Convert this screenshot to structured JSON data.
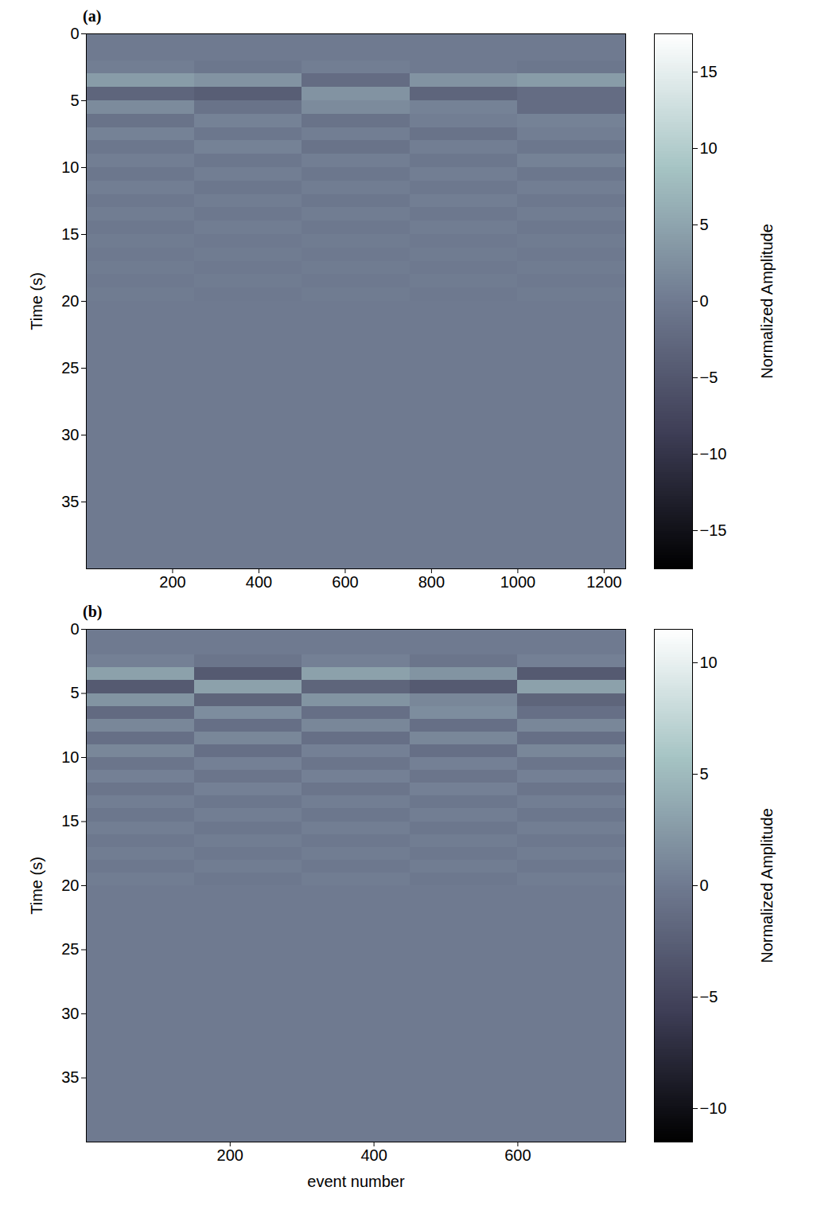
{
  "chart_data": [
    {
      "type": "heatmap",
      "panel_label": "(a)",
      "ylabel": "Time (s)",
      "xlabel": null,
      "x": [
        0,
        250,
        500,
        750,
        1000,
        1250
      ],
      "y": [
        0,
        1,
        2,
        3,
        4,
        5,
        6,
        7,
        8,
        9,
        10,
        11,
        12,
        13,
        14,
        15,
        16,
        17,
        18,
        19,
        20,
        21,
        22,
        23,
        24,
        25,
        26,
        27,
        28,
        29,
        30,
        31,
        32,
        33,
        34,
        35,
        36,
        37,
        38,
        39,
        40
      ],
      "values": [
        [
          0,
          0,
          0,
          0,
          0
        ],
        [
          0,
          0,
          0,
          0,
          0
        ],
        [
          0.5,
          -0.5,
          0.5,
          0,
          -0.5
        ],
        [
          4,
          3,
          -2,
          3,
          4
        ],
        [
          -3,
          -4,
          3,
          -3,
          -2
        ],
        [
          2,
          -1,
          2,
          1,
          -2
        ],
        [
          -1,
          1,
          -1,
          0.5,
          1
        ],
        [
          1,
          -0.5,
          0.5,
          -1,
          0.5
        ],
        [
          -0.5,
          1,
          -1,
          0.5,
          -0.5
        ],
        [
          0.5,
          -0.5,
          0.5,
          -0.5,
          1
        ],
        [
          -0.5,
          0.5,
          -0.5,
          0.5,
          -0.5
        ],
        [
          0.5,
          -0.5,
          0.3,
          -0.3,
          0.5
        ],
        [
          -0.3,
          0.3,
          -0.5,
          0.5,
          -0.3
        ],
        [
          0.3,
          -0.3,
          0.3,
          -0.3,
          0.3
        ],
        [
          -0.3,
          0.3,
          -0.3,
          0.3,
          -0.3
        ],
        [
          0.2,
          -0.2,
          0.2,
          -0.2,
          0.2
        ],
        [
          -0.2,
          0.2,
          -0.2,
          0.2,
          -0.2
        ],
        [
          0.2,
          -0.2,
          0.2,
          -0.2,
          0.2
        ],
        [
          -0.2,
          0.2,
          -0.2,
          0.2,
          -0.2
        ],
        [
          0.2,
          -0.2,
          0.2,
          -0.2,
          0.2
        ],
        [
          0,
          0,
          0,
          0,
          0
        ],
        [
          0,
          0,
          0,
          0,
          0
        ],
        [
          0,
          0,
          0,
          0,
          0
        ],
        [
          0,
          0,
          0,
          0,
          0
        ],
        [
          0,
          0,
          0,
          0,
          0
        ],
        [
          0,
          0,
          0,
          0,
          0
        ],
        [
          0,
          0,
          0,
          0,
          0
        ],
        [
          0,
          0,
          0,
          0,
          0
        ],
        [
          0,
          0,
          0,
          0,
          0
        ],
        [
          0,
          0,
          0,
          0,
          0
        ],
        [
          0,
          0,
          0,
          0,
          0
        ],
        [
          0,
          0,
          0,
          0,
          0
        ],
        [
          0,
          0,
          0,
          0,
          0
        ],
        [
          0,
          0,
          0,
          0,
          0
        ],
        [
          0,
          0,
          0,
          0,
          0
        ],
        [
          0,
          0,
          0,
          0,
          0
        ],
        [
          0,
          0,
          0,
          0,
          0
        ],
        [
          0,
          0,
          0,
          0,
          0
        ],
        [
          0,
          0,
          0,
          0,
          0
        ],
        [
          0,
          0,
          0,
          0,
          0
        ]
      ],
      "xlim": [
        0,
        1250
      ],
      "xticks": [
        200,
        400,
        600,
        800,
        1000,
        1200
      ],
      "ylim": [
        0,
        40
      ],
      "yticks": [
        0,
        5,
        10,
        15,
        20,
        25,
        30,
        35
      ],
      "color_range": [
        -17.5,
        17.5
      ],
      "color_ticks": [
        -15,
        -10,
        -5,
        0,
        5,
        10,
        15
      ],
      "color_label": "Normalized Amplitude"
    },
    {
      "type": "heatmap",
      "panel_label": "(b)",
      "ylabel": "Time (s)",
      "xlabel": "event number",
      "x": [
        0,
        150,
        300,
        450,
        600,
        750
      ],
      "y": [
        0,
        1,
        2,
        3,
        4,
        5,
        6,
        7,
        8,
        9,
        10,
        11,
        12,
        13,
        14,
        15,
        16,
        17,
        18,
        19,
        20,
        21,
        22,
        23,
        24,
        25,
        26,
        27,
        28,
        29,
        30,
        31,
        32,
        33,
        34,
        35,
        36,
        37,
        38,
        39,
        40
      ],
      "values": [
        [
          0,
          0,
          0,
          0,
          0
        ],
        [
          0,
          0,
          0,
          0,
          0
        ],
        [
          0.5,
          -0.5,
          0.5,
          -0.5,
          0.5
        ],
        [
          3,
          -3,
          3,
          2,
          -3
        ],
        [
          -3,
          3,
          -2,
          -3,
          3
        ],
        [
          2,
          -2,
          2,
          1,
          -2
        ],
        [
          -1.5,
          1.5,
          -1,
          1.5,
          -1
        ],
        [
          1,
          -1,
          1,
          -1,
          1
        ],
        [
          -1,
          1,
          -1,
          1,
          -1
        ],
        [
          1,
          -1,
          0.5,
          -1,
          1
        ],
        [
          -0.5,
          0.5,
          -0.5,
          0.5,
          -0.5
        ],
        [
          0.5,
          -0.5,
          0.5,
          -0.5,
          0.5
        ],
        [
          -0.5,
          0.5,
          -0.5,
          0.5,
          -0.5
        ],
        [
          0.3,
          -0.3,
          0.3,
          -0.3,
          0.3
        ],
        [
          -0.3,
          0.3,
          -0.3,
          0.3,
          -0.3
        ],
        [
          0.3,
          -0.3,
          0.3,
          -0.3,
          0.3
        ],
        [
          -0.2,
          0.2,
          -0.2,
          0.2,
          -0.2
        ],
        [
          0.2,
          -0.2,
          0.2,
          -0.2,
          0.2
        ],
        [
          -0.2,
          0.2,
          -0.2,
          0.2,
          -0.2
        ],
        [
          0.2,
          -0.2,
          0.2,
          -0.2,
          0.2
        ],
        [
          0,
          0,
          0,
          0,
          0
        ],
        [
          0,
          0,
          0,
          0,
          0
        ],
        [
          0,
          0,
          0,
          0,
          0
        ],
        [
          0,
          0,
          0,
          0,
          0
        ],
        [
          0,
          0,
          0,
          0,
          0
        ],
        [
          0,
          0,
          0,
          0,
          0
        ],
        [
          0,
          0,
          0,
          0,
          0
        ],
        [
          0,
          0,
          0,
          0,
          0
        ],
        [
          0,
          0,
          0,
          0,
          0
        ],
        [
          0,
          0,
          0,
          0,
          0
        ],
        [
          0,
          0,
          0,
          0,
          0
        ],
        [
          0,
          0,
          0,
          0,
          0
        ],
        [
          0,
          0,
          0,
          0,
          0
        ],
        [
          0,
          0,
          0,
          0,
          0
        ],
        [
          0,
          0,
          0,
          0,
          0
        ],
        [
          0,
          0,
          0,
          0,
          0
        ],
        [
          0,
          0,
          0,
          0,
          0
        ],
        [
          0,
          0,
          0,
          0,
          0
        ],
        [
          0,
          0,
          0,
          0,
          0
        ],
        [
          0,
          0,
          0,
          0,
          0
        ]
      ],
      "xlim": [
        0,
        750
      ],
      "xticks": [
        200,
        400,
        600
      ],
      "ylim": [
        0,
        40
      ],
      "yticks": [
        0,
        5,
        10,
        15,
        20,
        25,
        30,
        35
      ],
      "color_range": [
        -11.5,
        11.5
      ],
      "color_ticks": [
        -10,
        -5,
        0,
        5,
        10
      ],
      "color_label": "Normalized Amplitude"
    }
  ]
}
